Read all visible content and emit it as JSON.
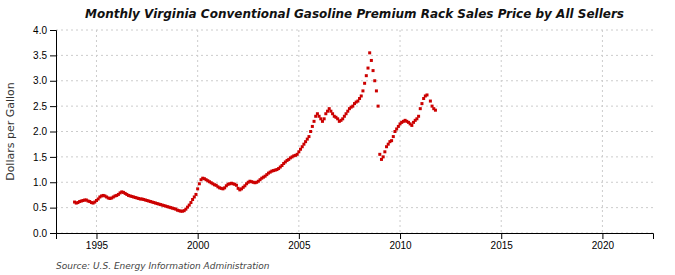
{
  "chart_data": {
    "type": "scatter",
    "title": "Monthly Virginia Conventional Gasoline Premium Rack Sales Price by All Sellers",
    "ylabel": "Dollars per Gallon",
    "source": "Source: U.S. Energy Information Administration",
    "color": "#cc0000",
    "marker": "square",
    "grid": true,
    "xlim": [
      1993.0,
      2022.5
    ],
    "xticks": [
      1995,
      2000,
      2005,
      2010,
      2015,
      2020
    ],
    "ylim": [
      0.0,
      4.0
    ],
    "yticks": [
      {
        "value": 0.0,
        "label": "0.0"
      },
      0.5,
      {
        "value": 1.0,
        "label": "1.0"
      },
      1.5,
      {
        "value": 2.0,
        "label": "2.0"
      },
      2.5,
      {
        "value": 3.0,
        "label": "3.0"
      },
      3.5,
      {
        "value": 4.0,
        "label": "4.0"
      }
    ],
    "x": [
      1993.917,
      1994.0,
      1994.083,
      1994.167,
      1994.25,
      1994.333,
      1994.417,
      1994.5,
      1994.583,
      1994.667,
      1994.75,
      1994.833,
      1994.917,
      1995.0,
      1995.083,
      1995.167,
      1995.25,
      1995.333,
      1995.417,
      1995.5,
      1995.583,
      1995.667,
      1995.75,
      1995.833,
      1995.917,
      1996.0,
      1996.083,
      1996.167,
      1996.25,
      1996.333,
      1996.417,
      1996.5,
      1996.583,
      1996.667,
      1996.75,
      1996.833,
      1996.917,
      1997.0,
      1997.083,
      1997.167,
      1997.25,
      1997.333,
      1997.417,
      1997.5,
      1997.583,
      1997.667,
      1997.75,
      1997.833,
      1997.917,
      1998.0,
      1998.083,
      1998.167,
      1998.25,
      1998.333,
      1998.417,
      1998.5,
      1998.583,
      1998.667,
      1998.75,
      1998.833,
      1998.917,
      1999.0,
      1999.083,
      1999.167,
      1999.25,
      1999.333,
      1999.417,
      1999.5,
      1999.583,
      1999.667,
      1999.75,
      1999.833,
      1999.917,
      2000.0,
      2000.083,
      2000.167,
      2000.25,
      2000.333,
      2000.417,
      2000.5,
      2000.583,
      2000.667,
      2000.75,
      2000.833,
      2000.917,
      2001.0,
      2001.083,
      2001.167,
      2001.25,
      2001.333,
      2001.417,
      2001.5,
      2001.583,
      2001.667,
      2001.75,
      2001.833,
      2001.917,
      2002.0,
      2002.083,
      2002.167,
      2002.25,
      2002.333,
      2002.417,
      2002.5,
      2002.583,
      2002.667,
      2002.75,
      2002.833,
      2002.917,
      2003.0,
      2003.083,
      2003.167,
      2003.25,
      2003.333,
      2003.417,
      2003.5,
      2003.583,
      2003.667,
      2003.75,
      2003.833,
      2003.917,
      2004.0,
      2004.083,
      2004.167,
      2004.25,
      2004.333,
      2004.417,
      2004.5,
      2004.583,
      2004.667,
      2004.75,
      2004.833,
      2004.917,
      2005.0,
      2005.083,
      2005.167,
      2005.25,
      2005.333,
      2005.417,
      2005.5,
      2005.583,
      2005.667,
      2005.75,
      2005.833,
      2005.917,
      2006.0,
      2006.083,
      2006.167,
      2006.25,
      2006.333,
      2006.417,
      2006.5,
      2006.583,
      2006.667,
      2006.75,
      2006.833,
      2006.917,
      2007.0,
      2007.083,
      2007.167,
      2007.25,
      2007.333,
      2007.417,
      2007.5,
      2007.583,
      2007.667,
      2007.75,
      2007.833,
      2007.917,
      2008.0,
      2008.083,
      2008.167,
      2008.25,
      2008.333,
      2008.417,
      2008.5,
      2008.583,
      2008.667,
      2008.75,
      2008.833,
      2008.917,
      2009.0,
      2009.083,
      2009.167,
      2009.25,
      2009.333,
      2009.417,
      2009.5,
      2009.583,
      2009.667,
      2009.75,
      2009.833,
      2009.917,
      2010.0,
      2010.083,
      2010.167,
      2010.25,
      2010.333,
      2010.417,
      2010.5,
      2010.583,
      2010.667,
      2010.75,
      2010.833,
      2010.917,
      2011.0,
      2011.083,
      2011.167,
      2011.25,
      2011.333,
      2011.5,
      2011.583,
      2011.667,
      2011.75
    ],
    "values": [
      0.61,
      0.59,
      0.6,
      0.62,
      0.63,
      0.64,
      0.65,
      0.65,
      0.63,
      0.62,
      0.6,
      0.59,
      0.61,
      0.64,
      0.67,
      0.71,
      0.73,
      0.74,
      0.73,
      0.71,
      0.69,
      0.68,
      0.69,
      0.71,
      0.73,
      0.74,
      0.76,
      0.79,
      0.81,
      0.8,
      0.78,
      0.76,
      0.74,
      0.73,
      0.72,
      0.71,
      0.7,
      0.69,
      0.68,
      0.67,
      0.67,
      0.66,
      0.65,
      0.64,
      0.63,
      0.62,
      0.61,
      0.6,
      0.59,
      0.58,
      0.57,
      0.56,
      0.55,
      0.54,
      0.53,
      0.52,
      0.51,
      0.5,
      0.49,
      0.48,
      0.47,
      0.45,
      0.44,
      0.43,
      0.43,
      0.44,
      0.47,
      0.51,
      0.55,
      0.6,
      0.66,
      0.71,
      0.76,
      0.87,
      0.97,
      1.05,
      1.08,
      1.07,
      1.05,
      1.03,
      1.01,
      0.99,
      0.97,
      0.95,
      0.94,
      0.91,
      0.89,
      0.88,
      0.87,
      0.89,
      0.93,
      0.96,
      0.97,
      0.98,
      0.97,
      0.96,
      0.94,
      0.88,
      0.85,
      0.87,
      0.9,
      0.93,
      0.97,
      1.0,
      1.02,
      1.01,
      1.0,
      0.99,
      1.0,
      1.02,
      1.05,
      1.08,
      1.1,
      1.12,
      1.15,
      1.18,
      1.2,
      1.22,
      1.23,
      1.24,
      1.25,
      1.27,
      1.3,
      1.33,
      1.37,
      1.4,
      1.43,
      1.45,
      1.48,
      1.5,
      1.52,
      1.53,
      1.55,
      1.6,
      1.65,
      1.7,
      1.75,
      1.8,
      1.85,
      1.9,
      2.0,
      2.1,
      2.2,
      2.3,
      2.35,
      2.3,
      2.25,
      2.2,
      2.25,
      2.35,
      2.4,
      2.45,
      2.4,
      2.35,
      2.3,
      2.28,
      2.25,
      2.2,
      2.22,
      2.25,
      2.3,
      2.35,
      2.4,
      2.45,
      2.48,
      2.5,
      2.55,
      2.58,
      2.6,
      2.65,
      2.7,
      2.8,
      2.95,
      3.1,
      3.25,
      3.55,
      3.4,
      3.2,
      3.0,
      2.8,
      2.5,
      1.55,
      1.45,
      1.5,
      1.6,
      1.7,
      1.75,
      1.8,
      1.82,
      1.9,
      2.0,
      2.05,
      2.1,
      2.15,
      2.18,
      2.2,
      2.22,
      2.2,
      2.18,
      2.15,
      2.12,
      2.18,
      2.22,
      2.25,
      2.3,
      2.45,
      2.55,
      2.65,
      2.7,
      2.72,
      2.6,
      2.5,
      2.45,
      2.42
    ]
  }
}
